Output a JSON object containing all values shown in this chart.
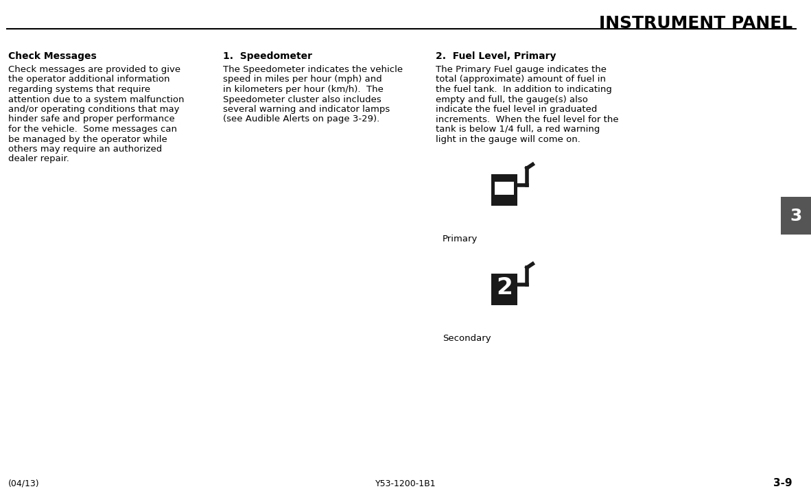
{
  "title": "INSTRUMENT PANEL",
  "bg_color": "#ffffff",
  "text_color": "#000000",
  "title_color": "#000000",
  "col1_heading": "Check Messages",
  "col1_body": "Check messages are provided to give the operator additional information regarding systems that require attention due to a system malfunction and/or operating conditions that may hinder safe and proper performance for the vehicle.  Some messages can be managed by the operator while others may require an authorized dealer repair.",
  "col2_heading": "1.  Speedometer",
  "col2_body": "The Speedometer indicates the vehicle speed in miles per hour (mph) and in kilometers per hour (km/h).  The Speedometer cluster also includes several warning and indicator lamps (see Audible Alerts on page 3-29).",
  "col3_heading": "2.  Fuel Level, Primary",
  "col3_body": "The Primary Fuel gauge indicates the total (approximate) amount of fuel in the fuel tank.  In addition to indicating empty and full, the gauge(s) also indicate the fuel level in graduated increments.  When the fuel level for the tank is below 1/4 full, a red warning light in the gauge will come on.",
  "primary_label": "Primary",
  "secondary_label": "Secondary",
  "footer_left": "(04/13)",
  "footer_center": "Y53-1200-1B1",
  "footer_right": "3-9",
  "tab_number": "3",
  "tab_color": "#555555",
  "tab_text_color": "#ffffff"
}
